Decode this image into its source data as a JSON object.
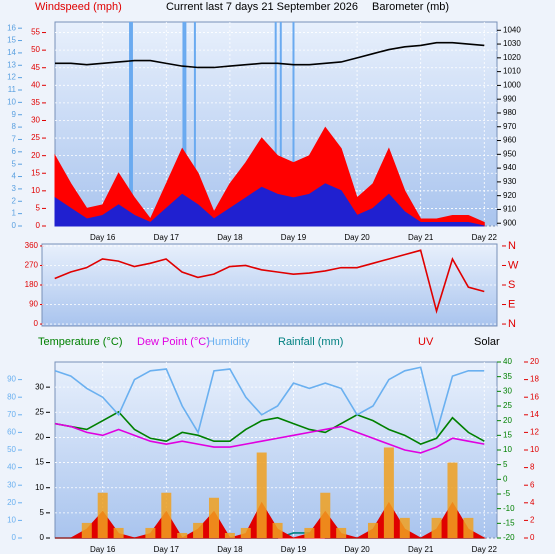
{
  "chart_data": [
    {
      "type": "line",
      "title": "Current last 7 days 21 September 2026",
      "ylabel": "Windspeed (mph)",
      "y2label": "Barometer (mb)",
      "x": [
        15.25,
        15.5,
        15.75,
        16,
        16.25,
        16.5,
        16.75,
        17,
        17.25,
        17.5,
        17.75,
        18,
        18.25,
        18.5,
        18.75,
        19,
        19.25,
        19.5,
        19.75,
        20,
        20.25,
        20.5,
        20.75,
        21,
        21.25,
        21.5,
        21.75,
        22
      ],
      "xlim": [
        15.25,
        22.2
      ],
      "xticks": [
        {
          "value": 16,
          "label": "Day 16"
        },
        {
          "value": 17,
          "label": "Day 17"
        },
        {
          "value": 18,
          "label": "Day 18"
        },
        {
          "value": 19,
          "label": "Day 19"
        },
        {
          "value": 20,
          "label": "Day 20"
        },
        {
          "value": 21,
          "label": "Day 21"
        },
        {
          "value": 22,
          "label": "Day 22"
        }
      ],
      "ylim": [
        0,
        58
      ],
      "yticks": [
        0,
        5,
        10,
        15,
        20,
        25,
        30,
        35,
        40,
        45,
        50,
        55
      ],
      "y_color": "#e00000",
      "y2lim": [
        898,
        1046
      ],
      "y2ticks": [
        900,
        910,
        920,
        930,
        940,
        950,
        960,
        970,
        980,
        990,
        1000,
        1010,
        1020,
        1030,
        1040
      ],
      "y2_color": "#000000",
      "y3lim": [
        0,
        16.5
      ],
      "y3ticks": [
        0,
        1,
        2,
        3,
        4,
        5,
        6,
        7,
        8,
        9,
        10,
        11,
        12,
        13,
        14,
        15,
        16
      ],
      "y3_color": "#5aa0e0",
      "grid": true,
      "spikes_x": [
        16.43,
        16.46,
        17.27,
        17.3,
        17.45,
        18.72,
        18.8,
        19.0
      ],
      "spikes_color": "#6aaaf0",
      "series": [
        {
          "kind": "area",
          "axis": "y",
          "color": "#ff0000",
          "values": [
            20,
            12,
            5,
            6,
            15,
            8,
            2,
            12,
            22,
            15,
            4,
            12,
            18,
            25,
            20,
            18,
            20,
            28,
            22,
            8,
            12,
            22,
            10,
            2,
            2,
            3,
            3,
            1
          ]
        },
        {
          "kind": "area",
          "axis": "y",
          "color": "#2020d0",
          "values": [
            8,
            5,
            2,
            3,
            6,
            3,
            1,
            5,
            9,
            6,
            2,
            5,
            8,
            11,
            9,
            8,
            9,
            12,
            10,
            3,
            5,
            9,
            4,
            1,
            1,
            1,
            1,
            0
          ]
        },
        {
          "kind": "line",
          "axis": "y2",
          "color": "#000000",
          "values": [
            1016,
            1016,
            1015,
            1016,
            1017,
            1018,
            1018,
            1016,
            1014,
            1013,
            1013,
            1014,
            1015,
            1016,
            1016,
            1015,
            1015,
            1016,
            1017,
            1020,
            1023,
            1026,
            1028,
            1029,
            1031,
            1031,
            1030,
            1029
          ]
        }
      ]
    },
    {
      "type": "line",
      "x": [
        15.25,
        15.5,
        15.75,
        16,
        16.25,
        16.5,
        16.75,
        17,
        17.25,
        17.5,
        17.75,
        18,
        18.25,
        18.5,
        18.75,
        19,
        19.25,
        19.5,
        19.75,
        20,
        20.25,
        20.5,
        20.75,
        21,
        21.25,
        21.5,
        21.75,
        22
      ],
      "xlim": [
        15.05,
        22.2
      ],
      "ylim": [
        -9,
        369
      ],
      "yticks": [
        0,
        90,
        180,
        270,
        360
      ],
      "y_color": "#e00000",
      "y2lim": [
        -9,
        369
      ],
      "y2ticks": [
        {
          "value": 360,
          "label": "N"
        },
        {
          "value": 270,
          "label": "W"
        },
        {
          "value": 180,
          "label": "S"
        },
        {
          "value": 90,
          "label": "E"
        },
        {
          "value": 0,
          "label": "N"
        }
      ],
      "y2_color": "#e00000",
      "grid": true,
      "series": [
        {
          "kind": "line",
          "axis": "y",
          "color": "#e00000",
          "values": [
            210,
            240,
            260,
            300,
            290,
            265,
            280,
            300,
            240,
            215,
            230,
            265,
            270,
            250,
            240,
            230,
            235,
            245,
            260,
            260,
            280,
            300,
            320,
            340,
            60,
            300,
            170,
            150
          ]
        }
      ]
    },
    {
      "type": "line",
      "legend": true,
      "x": [
        15.25,
        15.5,
        15.75,
        16,
        16.25,
        16.5,
        16.75,
        17,
        17.25,
        17.5,
        17.75,
        18,
        18.25,
        18.5,
        18.75,
        19,
        19.25,
        19.5,
        19.75,
        20,
        20.25,
        20.5,
        20.75,
        21,
        21.25,
        21.5,
        21.75,
        22
      ],
      "xlim": [
        15.25,
        22.2
      ],
      "xticks": [
        {
          "value": 16,
          "label": "Day 16"
        },
        {
          "value": 17,
          "label": "Day 17"
        },
        {
          "value": 18,
          "label": "Day 18"
        },
        {
          "value": 19,
          "label": "Day 19"
        },
        {
          "value": 20,
          "label": "Day 20"
        },
        {
          "value": 21,
          "label": "Day 21"
        },
        {
          "value": 22,
          "label": "Day 22"
        }
      ],
      "ylim": [
        0,
        35
      ],
      "yticks": [
        0,
        5,
        10,
        15,
        20,
        25,
        30
      ],
      "y_color": "#000000",
      "y2lim": [
        -20,
        40
      ],
      "y2ticks": [
        -20,
        -15,
        -10,
        -5,
        0,
        5,
        10,
        15,
        20,
        25,
        30,
        35,
        40
      ],
      "y2_color": "#008000",
      "y3lim": [
        0,
        100
      ],
      "y3ticks": [
        0,
        10,
        20,
        30,
        40,
        50,
        60,
        70,
        80,
        90
      ],
      "y3_color": "#6ab0f0",
      "y4lim": [
        0,
        20
      ],
      "y4ticks": [
        0,
        2,
        4,
        6,
        8,
        10,
        12,
        14,
        16,
        18,
        20
      ],
      "y4_color": "#e00000",
      "grid": true,
      "series": [
        {
          "name": "Temperature (°C)",
          "kind": "line",
          "axis": "y2",
          "color": "#008000",
          "values": [
            19,
            18,
            17,
            20,
            23,
            17,
            14,
            13,
            16,
            15,
            13,
            13,
            17,
            20,
            21,
            19,
            17,
            16,
            19,
            22,
            20,
            17,
            15,
            12,
            14,
            21,
            16,
            13
          ]
        },
        {
          "name": "Dew Point (°C)",
          "kind": "line",
          "axis": "y2",
          "color": "#e000e0",
          "values": [
            19,
            18,
            16,
            15,
            17,
            15,
            13,
            12,
            13,
            12,
            11,
            11,
            12,
            13,
            14,
            15,
            16,
            17,
            18,
            16,
            14,
            12,
            10,
            9,
            11,
            14,
            13,
            12
          ]
        },
        {
          "name": "Humidity",
          "kind": "line",
          "axis": "y3",
          "color": "#6ab0f0",
          "values": [
            95,
            92,
            85,
            80,
            70,
            90,
            95,
            96,
            75,
            60,
            95,
            96,
            80,
            70,
            75,
            88,
            85,
            88,
            85,
            70,
            75,
            90,
            95,
            97,
            60,
            92,
            95,
            95
          ]
        },
        {
          "name": "Rainfall (mm)",
          "kind": "line",
          "axis": "y",
          "color": "#008080",
          "values": [
            0,
            0,
            0,
            0,
            0,
            0,
            0,
            0,
            0,
            0,
            0,
            0,
            0,
            0,
            0,
            1,
            1,
            0,
            0,
            0,
            0,
            0,
            0,
            0,
            0,
            0,
            0,
            0
          ]
        },
        {
          "name": "UV",
          "kind": "area",
          "axis": "y4",
          "color": "#e00000",
          "values": [
            0,
            0,
            1,
            3,
            0.5,
            0,
            0.5,
            3,
            0,
            1,
            3,
            0,
            0.5,
            4,
            1,
            0,
            0.5,
            3,
            0.5,
            0,
            1,
            4,
            1,
            0,
            1,
            4,
            1,
            0
          ]
        },
        {
          "name": "Solar",
          "kind": "bar",
          "axis": "y",
          "color": "#f0a020",
          "values": [
            0,
            0,
            3,
            9,
            2,
            0,
            2,
            9,
            1,
            3,
            8,
            1,
            2,
            17,
            3,
            0,
            2,
            9,
            2,
            0,
            3,
            18,
            4,
            0,
            4,
            15,
            4,
            0
          ]
        }
      ]
    }
  ]
}
